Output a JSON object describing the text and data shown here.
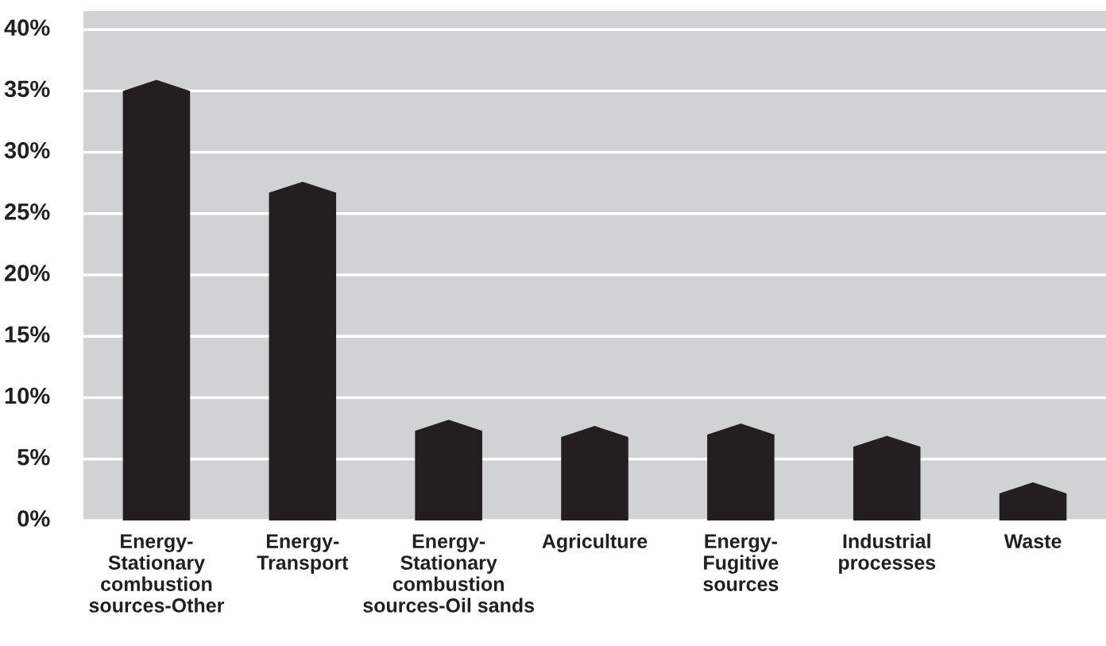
{
  "chart_data": {
    "type": "bar",
    "categories": [
      "Energy-\nStationary\ncombustion\nsources-Other",
      "Energy-\nTransport",
      "Energy-\nStationary\ncombustion\nsources-Oil sands",
      "Agriculture",
      "Energy-\nFugitive\nsources",
      "Industrial\nprocesses",
      "Waste"
    ],
    "values": [
      35.9,
      27.6,
      8.2,
      7.7,
      7.9,
      6.9,
      3.1
    ],
    "color": "#231f20",
    "ylim": [
      0,
      41.5
    ],
    "yticks": [
      {
        "value": 0,
        "label": "0%"
      },
      {
        "value": 5,
        "label": "5%"
      },
      {
        "value": 10,
        "label": "10%"
      },
      {
        "value": 15,
        "label": "15%"
      },
      {
        "value": 20,
        "label": "20%"
      },
      {
        "value": 25,
        "label": "25%"
      },
      {
        "value": 30,
        "label": "30%"
      },
      {
        "value": 35,
        "label": "35%"
      },
      {
        "value": 40,
        "label": "40%"
      }
    ],
    "grid": "y"
  }
}
